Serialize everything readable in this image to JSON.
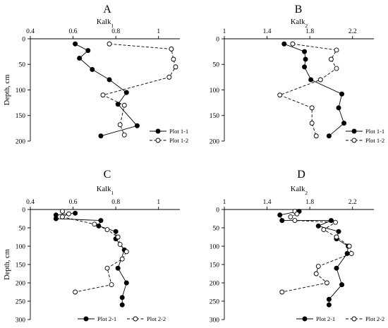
{
  "chart_data": [
    {
      "type": "line",
      "panel_label": "A",
      "xlabel": "Kalk",
      "xlabel_sub": "1",
      "ylabel": "Depth, cm",
      "xlim": [
        0.4,
        1.1
      ],
      "ylim": [
        0,
        200
      ],
      "xticks": [
        0.4,
        0.6,
        0.8,
        1
      ],
      "xtick_labels": [
        "0.4",
        "0.6",
        "0.8",
        "1"
      ],
      "yticks": [
        0,
        50,
        100,
        150,
        200
      ],
      "ytick_labels": [
        "0",
        "50",
        "100",
        "150",
        "200"
      ],
      "x_axis_position": "top",
      "y_axis_inverted": true,
      "grid": false,
      "legend_position": "bottom-right",
      "series": [
        {
          "name": "Plot 1-1",
          "style": "solid-filled",
          "points": [
            [
              0.61,
              10
            ],
            [
              0.67,
              23
            ],
            [
              0.63,
              38
            ],
            [
              0.69,
              60
            ],
            [
              0.77,
              80
            ],
            [
              0.85,
              105
            ],
            [
              0.81,
              128
            ],
            [
              0.9,
              170
            ],
            [
              0.73,
              190
            ]
          ]
        },
        {
          "name": "Plot 1-2",
          "style": "dashed-open",
          "points": [
            [
              0.77,
              10
            ],
            [
              1.06,
              20
            ],
            [
              1.07,
              40
            ],
            [
              1.08,
              55
            ],
            [
              1.05,
              75
            ],
            [
              0.74,
              110
            ],
            [
              0.84,
              130
            ],
            [
              0.82,
              168
            ],
            [
              0.84,
              188
            ]
          ]
        }
      ]
    },
    {
      "type": "line",
      "panel_label": "B",
      "xlabel": "Kalk",
      "xlabel_sub": "2",
      "ylabel": "",
      "xlim": [
        1,
        2.4
      ],
      "ylim": [
        0,
        200
      ],
      "xticks": [
        1,
        1.4,
        1.8,
        2.2
      ],
      "xtick_labels": [
        "1",
        "1.4",
        "1.8",
        "2.2"
      ],
      "yticks": [
        0,
        50,
        100,
        150,
        200
      ],
      "ytick_labels": [
        "0",
        "50",
        "100",
        "150",
        "200"
      ],
      "x_axis_position": "top",
      "y_axis_inverted": true,
      "grid": false,
      "legend_position": "bottom-right",
      "series": [
        {
          "name": "Plot 1-1",
          "style": "solid-filled",
          "points": [
            [
              1.56,
              10
            ],
            [
              1.75,
              25
            ],
            [
              1.76,
              40
            ],
            [
              1.75,
              55
            ],
            [
              1.81,
              80
            ],
            [
              2.1,
              108
            ],
            [
              2.07,
              135
            ],
            [
              2.12,
              165
            ],
            [
              1.98,
              190
            ]
          ]
        },
        {
          "name": "Plot 1-2",
          "style": "dashed-open",
          "points": [
            [
              1.64,
              10
            ],
            [
              2.05,
              22
            ],
            [
              2.0,
              40
            ],
            [
              2.05,
              58
            ],
            [
              1.9,
              80
            ],
            [
              1.52,
              110
            ],
            [
              1.82,
              135
            ],
            [
              1.82,
              165
            ],
            [
              1.86,
              190
            ]
          ]
        }
      ]
    },
    {
      "type": "line",
      "panel_label": "C",
      "xlabel": "Kalk",
      "xlabel_sub": "1",
      "ylabel": "Depth, cm",
      "xlim": [
        0.4,
        1.1
      ],
      "ylim": [
        0,
        300
      ],
      "xticks": [
        0.4,
        0.6,
        0.8,
        1
      ],
      "xtick_labels": [
        "0.4",
        "0.6",
        "0.8",
        "1"
      ],
      "yticks": [
        0,
        50,
        100,
        150,
        200,
        250,
        300
      ],
      "ytick_labels": [
        "0",
        "50",
        "100",
        "150",
        "200",
        "250",
        "300"
      ],
      "x_axis_position": "top",
      "y_axis_inverted": true,
      "grid": false,
      "legend_position": "bottom",
      "series": [
        {
          "name": "Plot 2-1",
          "style": "solid-filled",
          "points": [
            [
              0.61,
              10
            ],
            [
              0.52,
              15
            ],
            [
              0.52,
              25
            ],
            [
              0.73,
              30
            ],
            [
              0.72,
              45
            ],
            [
              0.8,
              60
            ],
            [
              0.8,
              80
            ],
            [
              0.84,
              110
            ],
            [
              0.81,
              160
            ],
            [
              0.85,
              200
            ],
            [
              0.83,
              240
            ],
            [
              0.83,
              260
            ]
          ]
        },
        {
          "name": "Plot 2-2",
          "style": "dashed-open",
          "points": [
            [
              0.55,
              5
            ],
            [
              0.58,
              12
            ],
            [
              0.55,
              20
            ],
            [
              0.7,
              40
            ],
            [
              0.76,
              55
            ],
            [
              0.81,
              75
            ],
            [
              0.82,
              95
            ],
            [
              0.85,
              115
            ],
            [
              0.83,
              135
            ],
            [
              0.76,
              160
            ],
            [
              0.78,
              205
            ],
            [
              0.61,
              225
            ]
          ]
        }
      ]
    },
    {
      "type": "line",
      "panel_label": "D",
      "xlabel": "Kalk",
      "xlabel_sub": "2",
      "ylabel": "",
      "xlim": [
        1,
        2.4
      ],
      "ylim": [
        0,
        300
      ],
      "xticks": [
        1,
        1.4,
        1.8,
        2.2
      ],
      "xtick_labels": [
        "1",
        "1.4",
        "1.8",
        "2.2"
      ],
      "yticks": [
        0,
        50,
        100,
        150,
        200,
        250,
        300
      ],
      "ytick_labels": [
        "0",
        "50",
        "100",
        "150",
        "200",
        "250",
        "300"
      ],
      "x_axis_position": "top",
      "y_axis_inverted": true,
      "grid": false,
      "legend_position": "bottom",
      "series": [
        {
          "name": "Plot 2-1",
          "style": "solid-filled",
          "points": [
            [
              1.7,
              5
            ],
            [
              1.52,
              15
            ],
            [
              1.54,
              30
            ],
            [
              2.0,
              30
            ],
            [
              1.88,
              45
            ],
            [
              2.07,
              60
            ],
            [
              2.05,
              80
            ],
            [
              2.16,
              100
            ],
            [
              2.15,
              120
            ],
            [
              2.05,
              160
            ],
            [
              2.1,
              205
            ],
            [
              1.98,
              245
            ],
            [
              1.98,
              260
            ]
          ]
        },
        {
          "name": "Plot 2-2",
          "style": "dashed-open",
          "points": [
            [
              1.66,
              5
            ],
            [
              1.68,
              12
            ],
            [
              1.62,
              20
            ],
            [
              1.66,
              30
            ],
            [
              2.04,
              35
            ],
            [
              1.93,
              55
            ],
            [
              2.05,
              75
            ],
            [
              2.17,
              100
            ],
            [
              2.19,
              120
            ],
            [
              1.88,
              155
            ],
            [
              1.86,
              175
            ],
            [
              1.96,
              200
            ],
            [
              1.54,
              225
            ]
          ]
        }
      ]
    }
  ]
}
